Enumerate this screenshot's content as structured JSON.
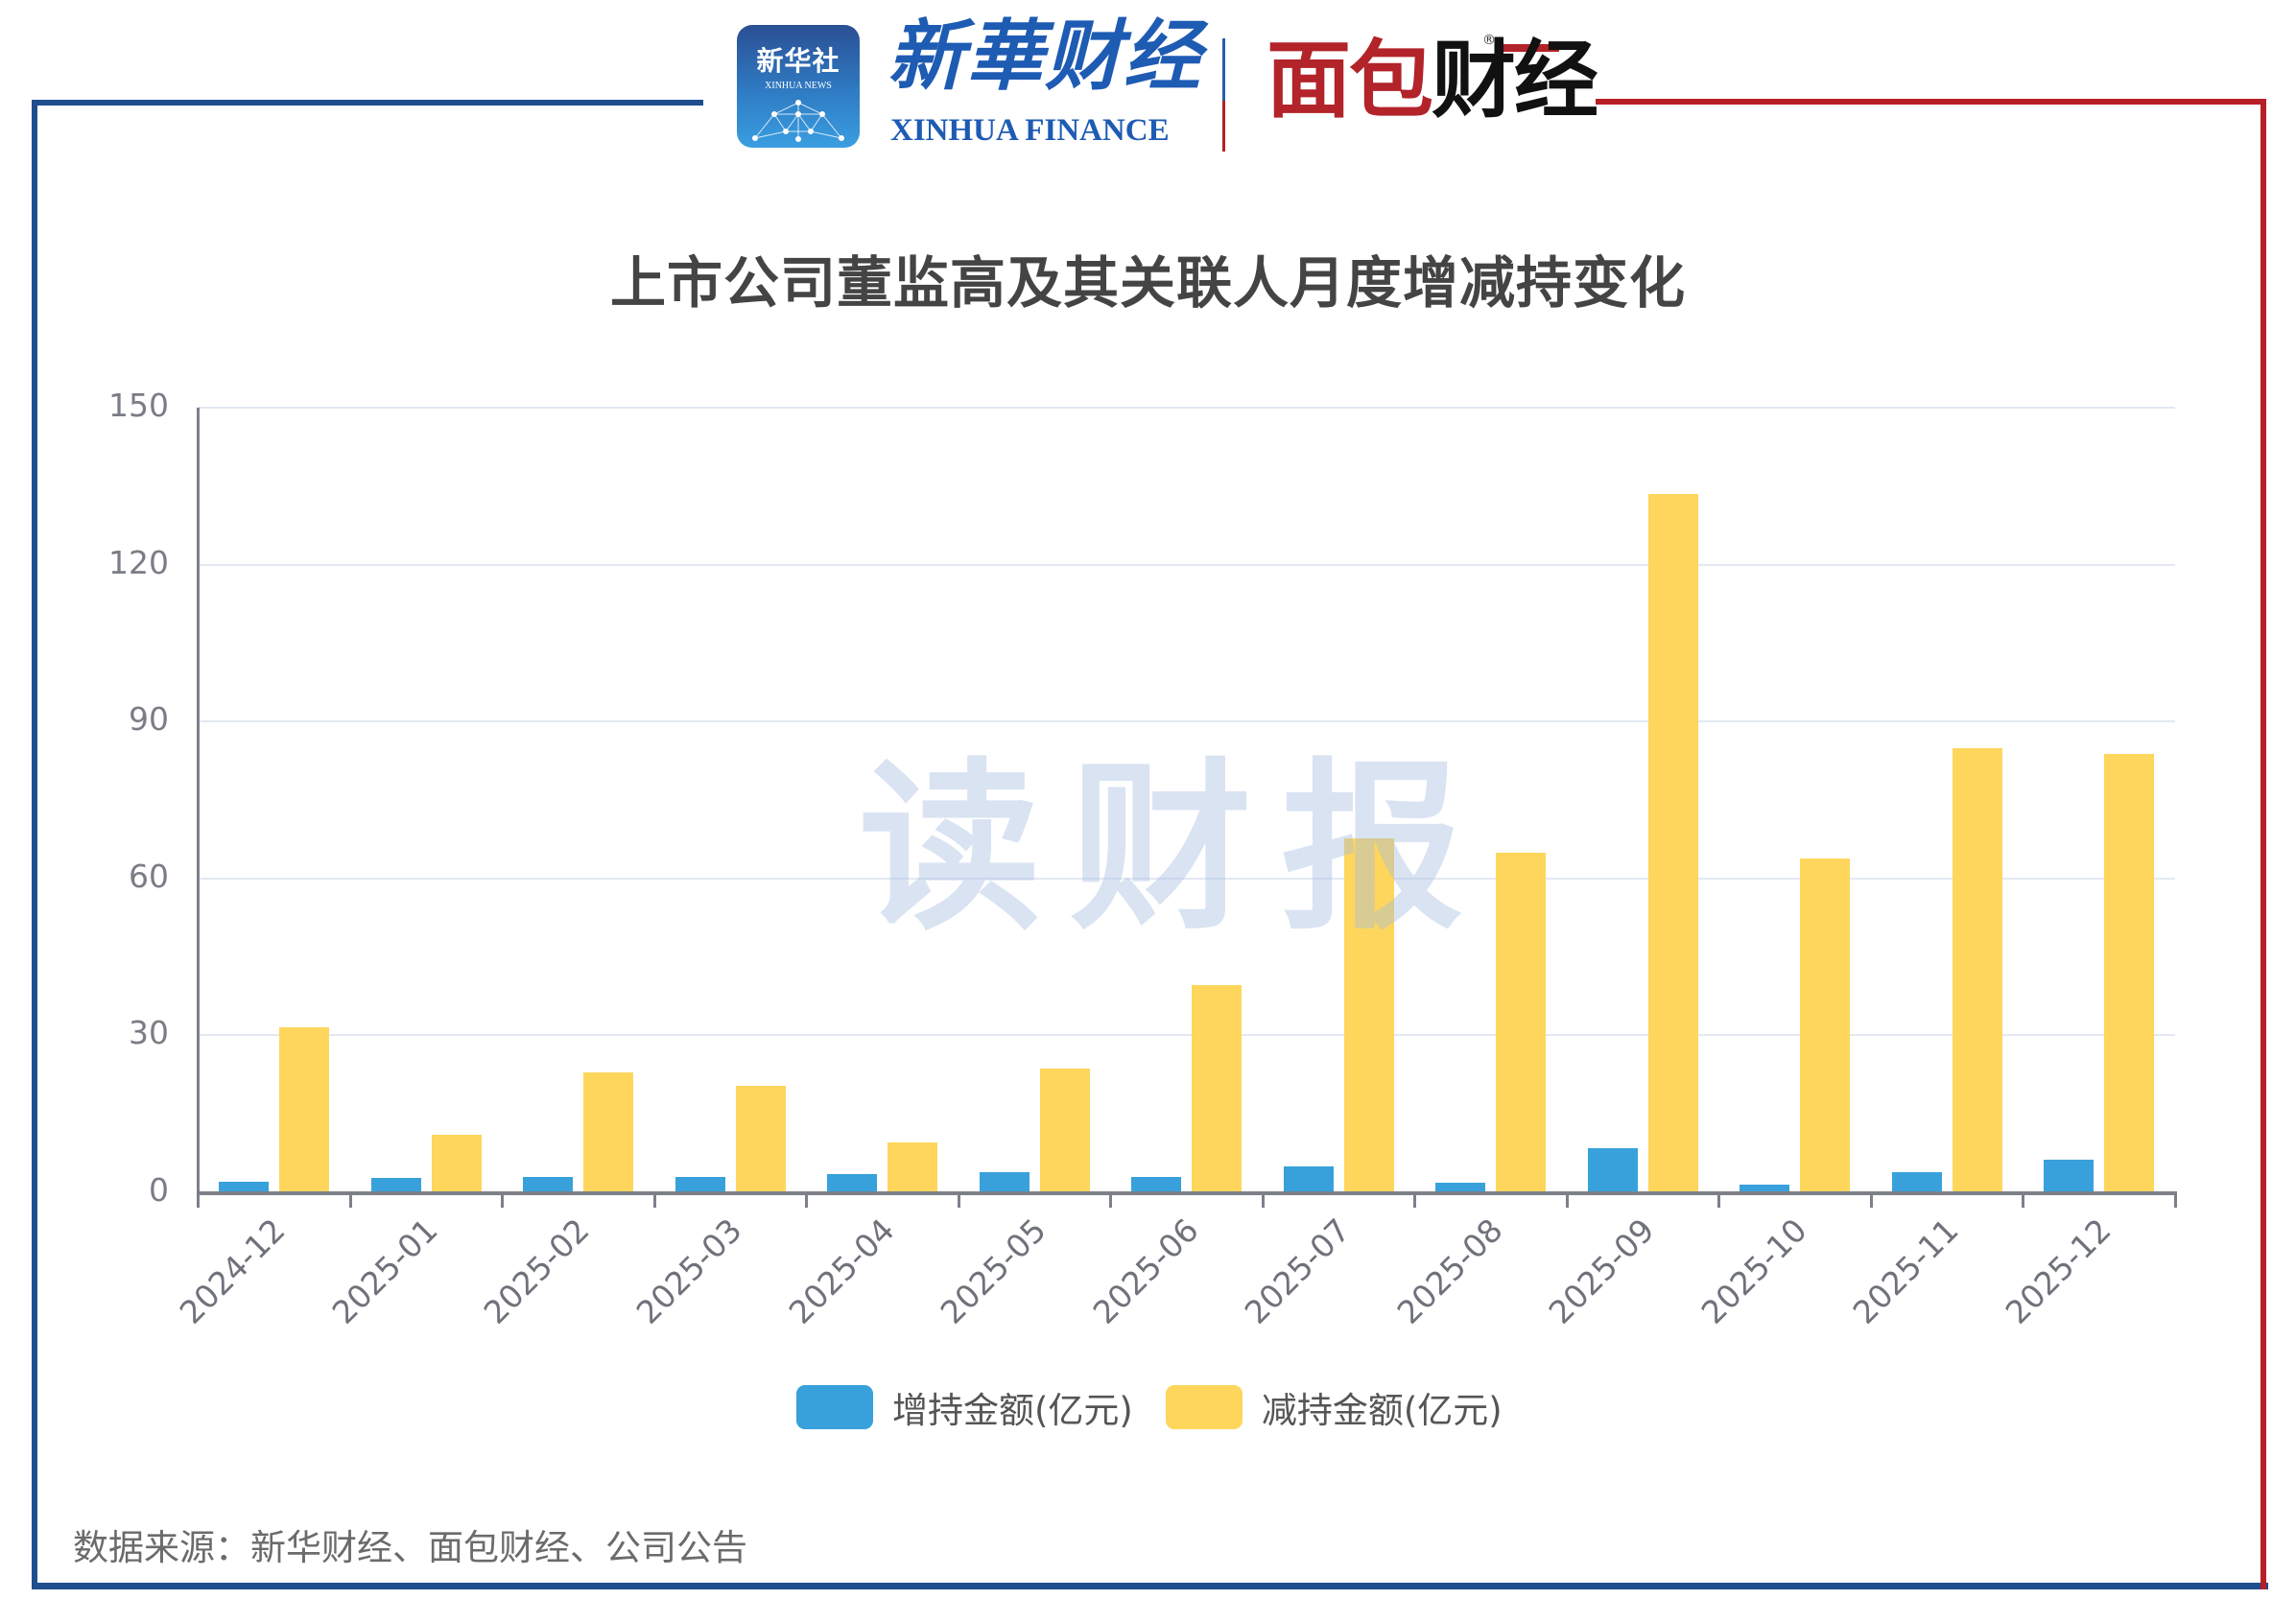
{
  "header": {
    "xinhua_app_logo_cn": "新华社",
    "xinhua_app_logo_en": "XINHUA NEWS",
    "xinhua_finance_cn": "新華财经",
    "xinhua_finance_en": "XINHUA FINANCE",
    "mianbao_logo_red": "面包",
    "mianbao_logo_black": "财经",
    "registered_mark": "®"
  },
  "watermark": "读财报",
  "colors": {
    "increase": "#38a1db",
    "decrease": "#fed65c",
    "frame_blue": "#1f4e8f",
    "frame_red": "#b81f26",
    "grid": "#e3e8f3",
    "axis": "#7d8089"
  },
  "source_note": "数据来源：新华财经、面包财经、公司公告",
  "chart_data": {
    "type": "bar",
    "title": "上市公司董监高及其关联人月度增减持变化",
    "xlabel": "",
    "ylabel": "",
    "categories": [
      "2024-12",
      "2025-01",
      "2025-02",
      "2025-03",
      "2025-04",
      "2025-05",
      "2025-06",
      "2025-07",
      "2025-08",
      "2025-09",
      "2025-10",
      "2025-11",
      "2025-12"
    ],
    "series": [
      {
        "name": "增持金额(亿元)",
        "color": "#38a1db",
        "values": [
          2.0,
          2.8,
          2.9,
          2.9,
          3.4,
          3.8,
          3.0,
          5.0,
          1.8,
          8.5,
          1.5,
          3.8,
          6.2
        ]
      },
      {
        "name": "减持金额(亿元)",
        "color": "#fed65c",
        "values": [
          31.6,
          11.0,
          23.0,
          20.3,
          9.5,
          23.6,
          39.6,
          67.6,
          64.9,
          133.5,
          63.9,
          84.9,
          83.8
        ]
      }
    ],
    "ylim": [
      0,
      150
    ],
    "yticks": [
      0,
      30,
      60,
      90,
      120,
      150
    ],
    "grid": true,
    "legend_position": "bottom",
    "x_label_rotation": -45
  }
}
